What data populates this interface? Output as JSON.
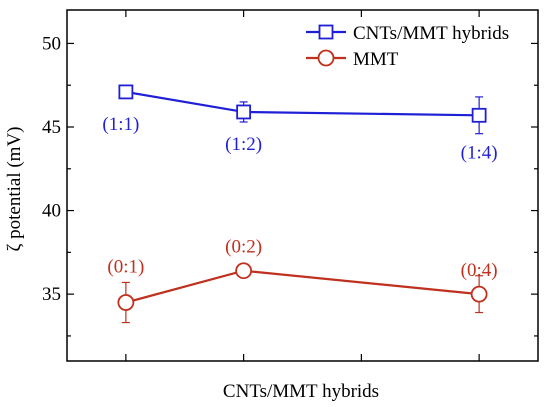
{
  "chart_data": {
    "type": "line",
    "title": "",
    "xlabel": "CNTs/MMT hybrids",
    "ylabel": "ζ potential (mV)",
    "ylim": [
      31,
      52
    ],
    "xlim": [
      0.5,
      4.5
    ],
    "x": [
      1,
      2,
      4
    ],
    "y_ticks": [
      35,
      40,
      45,
      50
    ],
    "y_tick_labels": [
      "35",
      "40",
      "45",
      "50"
    ],
    "x_ticks": [
      1,
      2,
      3,
      4
    ],
    "grid": false,
    "legend_placement": "top-right",
    "series": [
      {
        "name": "CNTs/MMT hybrids",
        "color": "#1f1fd6",
        "marker": "square",
        "values": [
          47.1,
          45.9,
          45.7
        ],
        "errors": [
          0,
          0.6,
          1.1
        ],
        "point_labels": [
          "(1:1)",
          "(1:2)",
          "(1:4)"
        ],
        "label_position": "below"
      },
      {
        "name": "MMT",
        "color": "#c0301e",
        "marker": "circle",
        "values": [
          34.5,
          36.4,
          35.0
        ],
        "errors": [
          1.2,
          0.1,
          1.1
        ],
        "point_labels": [
          "(0:1)",
          "(0:2)",
          "(0:4)"
        ],
        "label_position": "above"
      }
    ]
  }
}
